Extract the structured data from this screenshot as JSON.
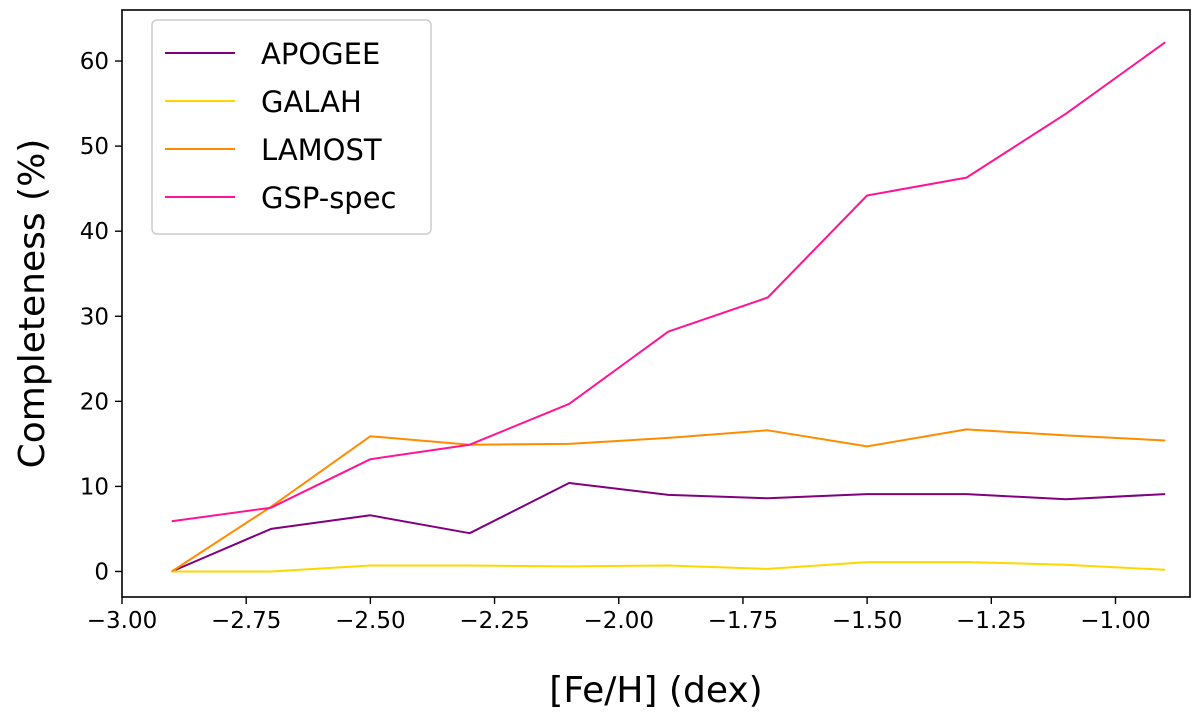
{
  "chart_data": {
    "type": "line",
    "title": "",
    "xlabel": "[Fe/H] (dex)",
    "ylabel": "Completeness (%)",
    "xlim": [
      -3.0,
      -0.85
    ],
    "ylim": [
      -3,
      66
    ],
    "xticks": [
      -3.0,
      -2.75,
      -2.5,
      -2.25,
      -2.0,
      -1.75,
      -1.5,
      -1.25,
      -1.0
    ],
    "xtick_labels": [
      "−3.00",
      "−2.75",
      "−2.50",
      "−2.25",
      "−2.00",
      "−1.75",
      "−1.50",
      "−1.25",
      "−1.00"
    ],
    "yticks": [
      0,
      10,
      20,
      30,
      40,
      50,
      60
    ],
    "ytick_labels": [
      "0",
      "10",
      "20",
      "30",
      "40",
      "50",
      "60"
    ],
    "grid": false,
    "legend_position": "top-left",
    "x": [
      -2.9,
      -2.7,
      -2.5,
      -2.3,
      -2.1,
      -1.9,
      -1.7,
      -1.5,
      -1.3,
      -1.1,
      -0.9
    ],
    "series": [
      {
        "name": "APOGEE",
        "color": "#800080",
        "values": [
          0.0,
          5.0,
          6.6,
          4.5,
          10.4,
          9.0,
          8.6,
          9.1,
          9.1,
          8.5,
          9.1
        ]
      },
      {
        "name": "GALAH",
        "color": "#ffd700",
        "values": [
          0.0,
          0.0,
          0.7,
          0.7,
          0.6,
          0.7,
          0.3,
          1.1,
          1.1,
          0.8,
          0.2
        ]
      },
      {
        "name": "LAMOST",
        "color": "#ff8c00",
        "values": [
          0.0,
          7.6,
          15.9,
          14.9,
          15.0,
          15.7,
          16.6,
          14.7,
          16.7,
          16.0,
          15.4
        ]
      },
      {
        "name": "GSP-spec",
        "color": "#ff1493",
        "values": [
          5.9,
          7.5,
          13.2,
          14.9,
          19.7,
          28.2,
          32.2,
          44.2,
          46.3,
          53.8,
          62.2
        ]
      }
    ]
  }
}
